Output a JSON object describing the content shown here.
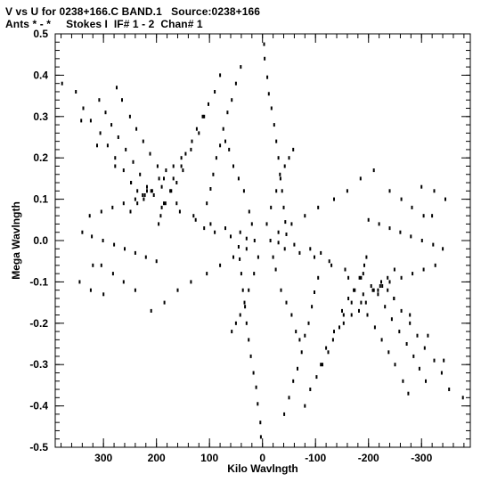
{
  "header": {
    "line1": "V vs U for 0238+166.C BAND.1   Source:0238+166",
    "line2": "Ants * - *     Stokes I  IF# 1 - 2  Chan# 1"
  },
  "chart_data": {
    "type": "scatter",
    "title": "V vs U for 0238+166.C BAND.1   Source:0238+166",
    "subtitle": "Ants * - *     Stokes I  IF# 1 - 2  Chan# 1",
    "xlabel": "Kilo Wavlngth",
    "ylabel": "Mega Wavlngth",
    "xlim": [
      391,
      -392
    ],
    "ylim": [
      -0.5,
      0.5
    ],
    "x_reversed": true,
    "grid": false,
    "xticks": [
      300,
      200,
      100,
      0,
      -100,
      -200,
      -300
    ],
    "xtick_labels": [
      "300",
      "200",
      "100",
      "0",
      "-100",
      "-200",
      "-300"
    ],
    "yticks": [
      0.5,
      0.4,
      0.3,
      0.2,
      0.1,
      0.0,
      -0.1,
      -0.2,
      -0.3,
      -0.4,
      -0.5
    ],
    "ytick_labels": [
      "0.5",
      "0.4",
      "0.3",
      "0.2",
      "0.1",
      "0.0",
      "-0.1",
      "-0.2",
      "-0.3",
      "-0.4",
      "-0.5"
    ],
    "points": [
      [
        -3,
        0.475
      ],
      [
        3,
        -0.475
      ],
      [
        -4,
        0.44
      ],
      [
        4,
        -0.44
      ],
      [
        -9,
        0.395
      ],
      [
        9,
        -0.395
      ],
      [
        -12,
        0.355
      ],
      [
        12,
        -0.355
      ],
      [
        -17,
        0.32
      ],
      [
        17,
        -0.32
      ],
      [
        -22,
        0.28
      ],
      [
        22,
        -0.28
      ],
      [
        -26,
        0.24
      ],
      [
        26,
        -0.24
      ],
      [
        -30,
        0.2
      ],
      [
        30,
        -0.2
      ],
      [
        -33,
        0.16
      ],
      [
        33,
        -0.16
      ],
      [
        -37,
        0.12
      ],
      [
        37,
        -0.12
      ],
      [
        -40,
        0.08
      ],
      [
        40,
        -0.08
      ],
      [
        -43,
        0.045
      ],
      [
        43,
        -0.045
      ],
      [
        -45,
        0.015
      ],
      [
        45,
        -0.015
      ],
      [
        41,
        0.42
      ],
      [
        -41,
        -0.42
      ],
      [
        50,
        0.38
      ],
      [
        -50,
        -0.38
      ],
      [
        58,
        0.34
      ],
      [
        -58,
        -0.34
      ],
      [
        66,
        0.31
      ],
      [
        -66,
        -0.31
      ],
      [
        74,
        0.27
      ],
      [
        -74,
        -0.27
      ],
      [
        80,
        0.23
      ],
      [
        -80,
        -0.23
      ],
      [
        87,
        0.2
      ],
      [
        -87,
        -0.2
      ],
      [
        93,
        0.16
      ],
      [
        -93,
        -0.16
      ],
      [
        98,
        0.125
      ],
      [
        -98,
        -0.125
      ],
      [
        105,
        0.09
      ],
      [
        -105,
        -0.09
      ],
      [
        80,
        0.4
      ],
      [
        -80,
        -0.4
      ],
      [
        90,
        0.36
      ],
      [
        -90,
        -0.36
      ],
      [
        102,
        0.33
      ],
      [
        -102,
        -0.33
      ],
      [
        113,
        0.3
      ],
      [
        -113,
        -0.3
      ],
      [
        124,
        0.27
      ],
      [
        -124,
        -0.27
      ],
      [
        133,
        0.24
      ],
      [
        -133,
        -0.24
      ],
      [
        145,
        0.21
      ],
      [
        -145,
        -0.21
      ],
      [
        153,
        0.18
      ],
      [
        -153,
        -0.18
      ],
      [
        162,
        0.14
      ],
      [
        -162,
        -0.14
      ],
      [
        172,
        0.12
      ],
      [
        -172,
        -0.12
      ],
      [
        183,
        0.09
      ],
      [
        -183,
        -0.09
      ],
      [
        192,
        0.06
      ],
      [
        -192,
        -0.06
      ],
      [
        196,
        0.04
      ],
      [
        -196,
        -0.04
      ],
      [
        110,
        0.3
      ],
      [
        -110,
        -0.3
      ],
      [
        120,
        0.26
      ],
      [
        -120,
        -0.26
      ],
      [
        135,
        0.22
      ],
      [
        -135,
        -0.22
      ],
      [
        153,
        0.2
      ],
      [
        -153,
        -0.2
      ],
      [
        168,
        0.18
      ],
      [
        -168,
        -0.18
      ],
      [
        182,
        0.17
      ],
      [
        -182,
        -0.17
      ],
      [
        195,
        0.15
      ],
      [
        -195,
        -0.15
      ],
      [
        210,
        0.12
      ],
      [
        -210,
        -0.12
      ],
      [
        222,
        0.11
      ],
      [
        -222,
        -0.11
      ],
      [
        236,
        0.09
      ],
      [
        -236,
        -0.09
      ],
      [
        249,
        0.07
      ],
      [
        -249,
        -0.07
      ],
      [
        275,
        0.37
      ],
      [
        -275,
        -0.37
      ],
      [
        265,
        0.34
      ],
      [
        -265,
        -0.34
      ],
      [
        250,
        0.3
      ],
      [
        -250,
        -0.3
      ],
      [
        238,
        0.27
      ],
      [
        -238,
        -0.27
      ],
      [
        225,
        0.24
      ],
      [
        -225,
        -0.24
      ],
      [
        212,
        0.21
      ],
      [
        -212,
        -0.21
      ],
      [
        198,
        0.18
      ],
      [
        -198,
        -0.18
      ],
      [
        186,
        0.15
      ],
      [
        -186,
        -0.15
      ],
      [
        174,
        0.12
      ],
      [
        -174,
        -0.12
      ],
      [
        162,
        0.09
      ],
      [
        -162,
        -0.09
      ],
      [
        308,
        0.34
      ],
      [
        -308,
        -0.34
      ],
      [
        296,
        0.31
      ],
      [
        -296,
        -0.31
      ],
      [
        285,
        0.28
      ],
      [
        -285,
        -0.28
      ],
      [
        272,
        0.25
      ],
      [
        -272,
        -0.25
      ],
      [
        258,
        0.22
      ],
      [
        -258,
        -0.22
      ],
      [
        244,
        0.19
      ],
      [
        -244,
        -0.19
      ],
      [
        231,
        0.16
      ],
      [
        -231,
        -0.16
      ],
      [
        218,
        0.13
      ],
      [
        -218,
        -0.13
      ],
      [
        205,
        0.11
      ],
      [
        -205,
        -0.11
      ],
      [
        190,
        0.08
      ],
      [
        -190,
        -0.08
      ],
      [
        352,
        0.36
      ],
      [
        -352,
        -0.36
      ],
      [
        338,
        0.32
      ],
      [
        -338,
        -0.32
      ],
      [
        324,
        0.29
      ],
      [
        -324,
        -0.29
      ],
      [
        306,
        0.26
      ],
      [
        -306,
        -0.26
      ],
      [
        292,
        0.23
      ],
      [
        -292,
        -0.23
      ],
      [
        278,
        0.2
      ],
      [
        -278,
        -0.2
      ],
      [
        262,
        0.17
      ],
      [
        -262,
        -0.17
      ],
      [
        248,
        0.14
      ],
      [
        -248,
        -0.14
      ],
      [
        236,
        0.12
      ],
      [
        -236,
        -0.12
      ],
      [
        224,
        0.1
      ],
      [
        -224,
        -0.1
      ],
      [
        378,
        0.38
      ],
      [
        -378,
        -0.38
      ],
      [
        342,
        0.29
      ],
      [
        -342,
        -0.29
      ],
      [
        312,
        0.23
      ],
      [
        -312,
        -0.23
      ],
      [
        278,
        0.18
      ],
      [
        -278,
        -0.18
      ],
      [
        248,
        0.14
      ],
      [
        -248,
        -0.14
      ],
      [
        218,
        0.12
      ],
      [
        -218,
        -0.12
      ],
      [
        186,
        0.09
      ],
      [
        -186,
        -0.09
      ],
      [
        156,
        0.07
      ],
      [
        -156,
        -0.07
      ],
      [
        126,
        0.05
      ],
      [
        -126,
        -0.05
      ],
      [
        98,
        0.04
      ],
      [
        -98,
        -0.04
      ],
      [
        70,
        0.03
      ],
      [
        -70,
        -0.03
      ],
      [
        42,
        0.02
      ],
      [
        -42,
        -0.02
      ],
      [
        326,
        0.06
      ],
      [
        -326,
        -0.06
      ],
      [
        304,
        0.07
      ],
      [
        -304,
        -0.07
      ],
      [
        283,
        0.08
      ],
      [
        -283,
        -0.08
      ],
      [
        262,
        0.09
      ],
      [
        -262,
        -0.09
      ],
      [
        240,
        0.1
      ],
      [
        -240,
        -0.1
      ],
      [
        226,
        0.11
      ],
      [
        -226,
        -0.11
      ],
      [
        208,
        0.12
      ],
      [
        -208,
        -0.12
      ],
      [
        190,
        0.13
      ],
      [
        -190,
        -0.13
      ],
      [
        168,
        0.15
      ],
      [
        -168,
        -0.15
      ],
      [
        150,
        0.17
      ],
      [
        -150,
        -0.17
      ],
      [
        340,
        0.02
      ],
      [
        -340,
        -0.02
      ],
      [
        322,
        0.01
      ],
      [
        -322,
        -0.01
      ],
      [
        301,
        0.0
      ],
      [
        -301,
        0.0
      ],
      [
        280,
        -0.01
      ],
      [
        -280,
        0.01
      ],
      [
        260,
        -0.02
      ],
      [
        -260,
        0.02
      ],
      [
        240,
        -0.03
      ],
      [
        -240,
        0.03
      ],
      [
        220,
        -0.04
      ],
      [
        -220,
        0.04
      ],
      [
        200,
        -0.05
      ],
      [
        -200,
        0.05
      ],
      [
        304,
        -0.06
      ],
      [
        -304,
        0.06
      ],
      [
        282,
        -0.08
      ],
      [
        -282,
        0.08
      ],
      [
        262,
        -0.1
      ],
      [
        -262,
        0.1
      ],
      [
        240,
        -0.12
      ],
      [
        -240,
        0.12
      ],
      [
        320,
        -0.06
      ],
      [
        -320,
        0.06
      ],
      [
        345,
        -0.1
      ],
      [
        -345,
        0.1
      ],
      [
        324,
        -0.12
      ],
      [
        -324,
        0.12
      ],
      [
        300,
        -0.13
      ],
      [
        -300,
        0.13
      ],
      [
        130,
        0.06
      ],
      [
        -130,
        -0.06
      ],
      [
        110,
        0.03
      ],
      [
        -110,
        -0.03
      ],
      [
        90,
        0.02
      ],
      [
        -90,
        -0.02
      ],
      [
        60,
        0.01
      ],
      [
        -60,
        -0.01
      ],
      [
        30,
        0.005
      ],
      [
        -30,
        -0.005
      ],
      [
        15,
        0.0
      ],
      [
        -15,
        0.0
      ],
      [
        20,
        0.04
      ],
      [
        -20,
        -0.04
      ],
      [
        25,
        0.07
      ],
      [
        -25,
        -0.07
      ],
      [
        35,
        0.12
      ],
      [
        -35,
        -0.12
      ],
      [
        45,
        0.15
      ],
      [
        -45,
        -0.15
      ],
      [
        55,
        0.18
      ],
      [
        -55,
        -0.18
      ],
      [
        63,
        0.22
      ],
      [
        -63,
        -0.22
      ],
      [
        70,
        0.24
      ],
      [
        -70,
        -0.24
      ],
      [
        -8,
        0.04
      ],
      [
        8,
        -0.04
      ],
      [
        -16,
        0.08
      ],
      [
        16,
        -0.08
      ],
      [
        -26,
        0.12
      ],
      [
        26,
        -0.12
      ],
      [
        -34,
        0.15
      ],
      [
        34,
        -0.15
      ],
      [
        -42,
        0.18
      ],
      [
        42,
        -0.18
      ],
      [
        -50,
        0.2
      ],
      [
        50,
        -0.2
      ],
      [
        -58,
        0.22
      ],
      [
        58,
        -0.22
      ],
      [
        -30,
        0.02
      ],
      [
        30,
        -0.02
      ],
      [
        -55,
        0.04
      ],
      [
        55,
        -0.04
      ],
      [
        -80,
        0.06
      ],
      [
        80,
        -0.06
      ],
      [
        -105,
        0.08
      ],
      [
        105,
        -0.08
      ],
      [
        -135,
        0.1
      ],
      [
        135,
        -0.1
      ],
      [
        -160,
        0.12
      ],
      [
        160,
        -0.12
      ],
      [
        -185,
        0.15
      ],
      [
        185,
        -0.15
      ],
      [
        -210,
        0.17
      ],
      [
        210,
        -0.17
      ]
    ]
  }
}
